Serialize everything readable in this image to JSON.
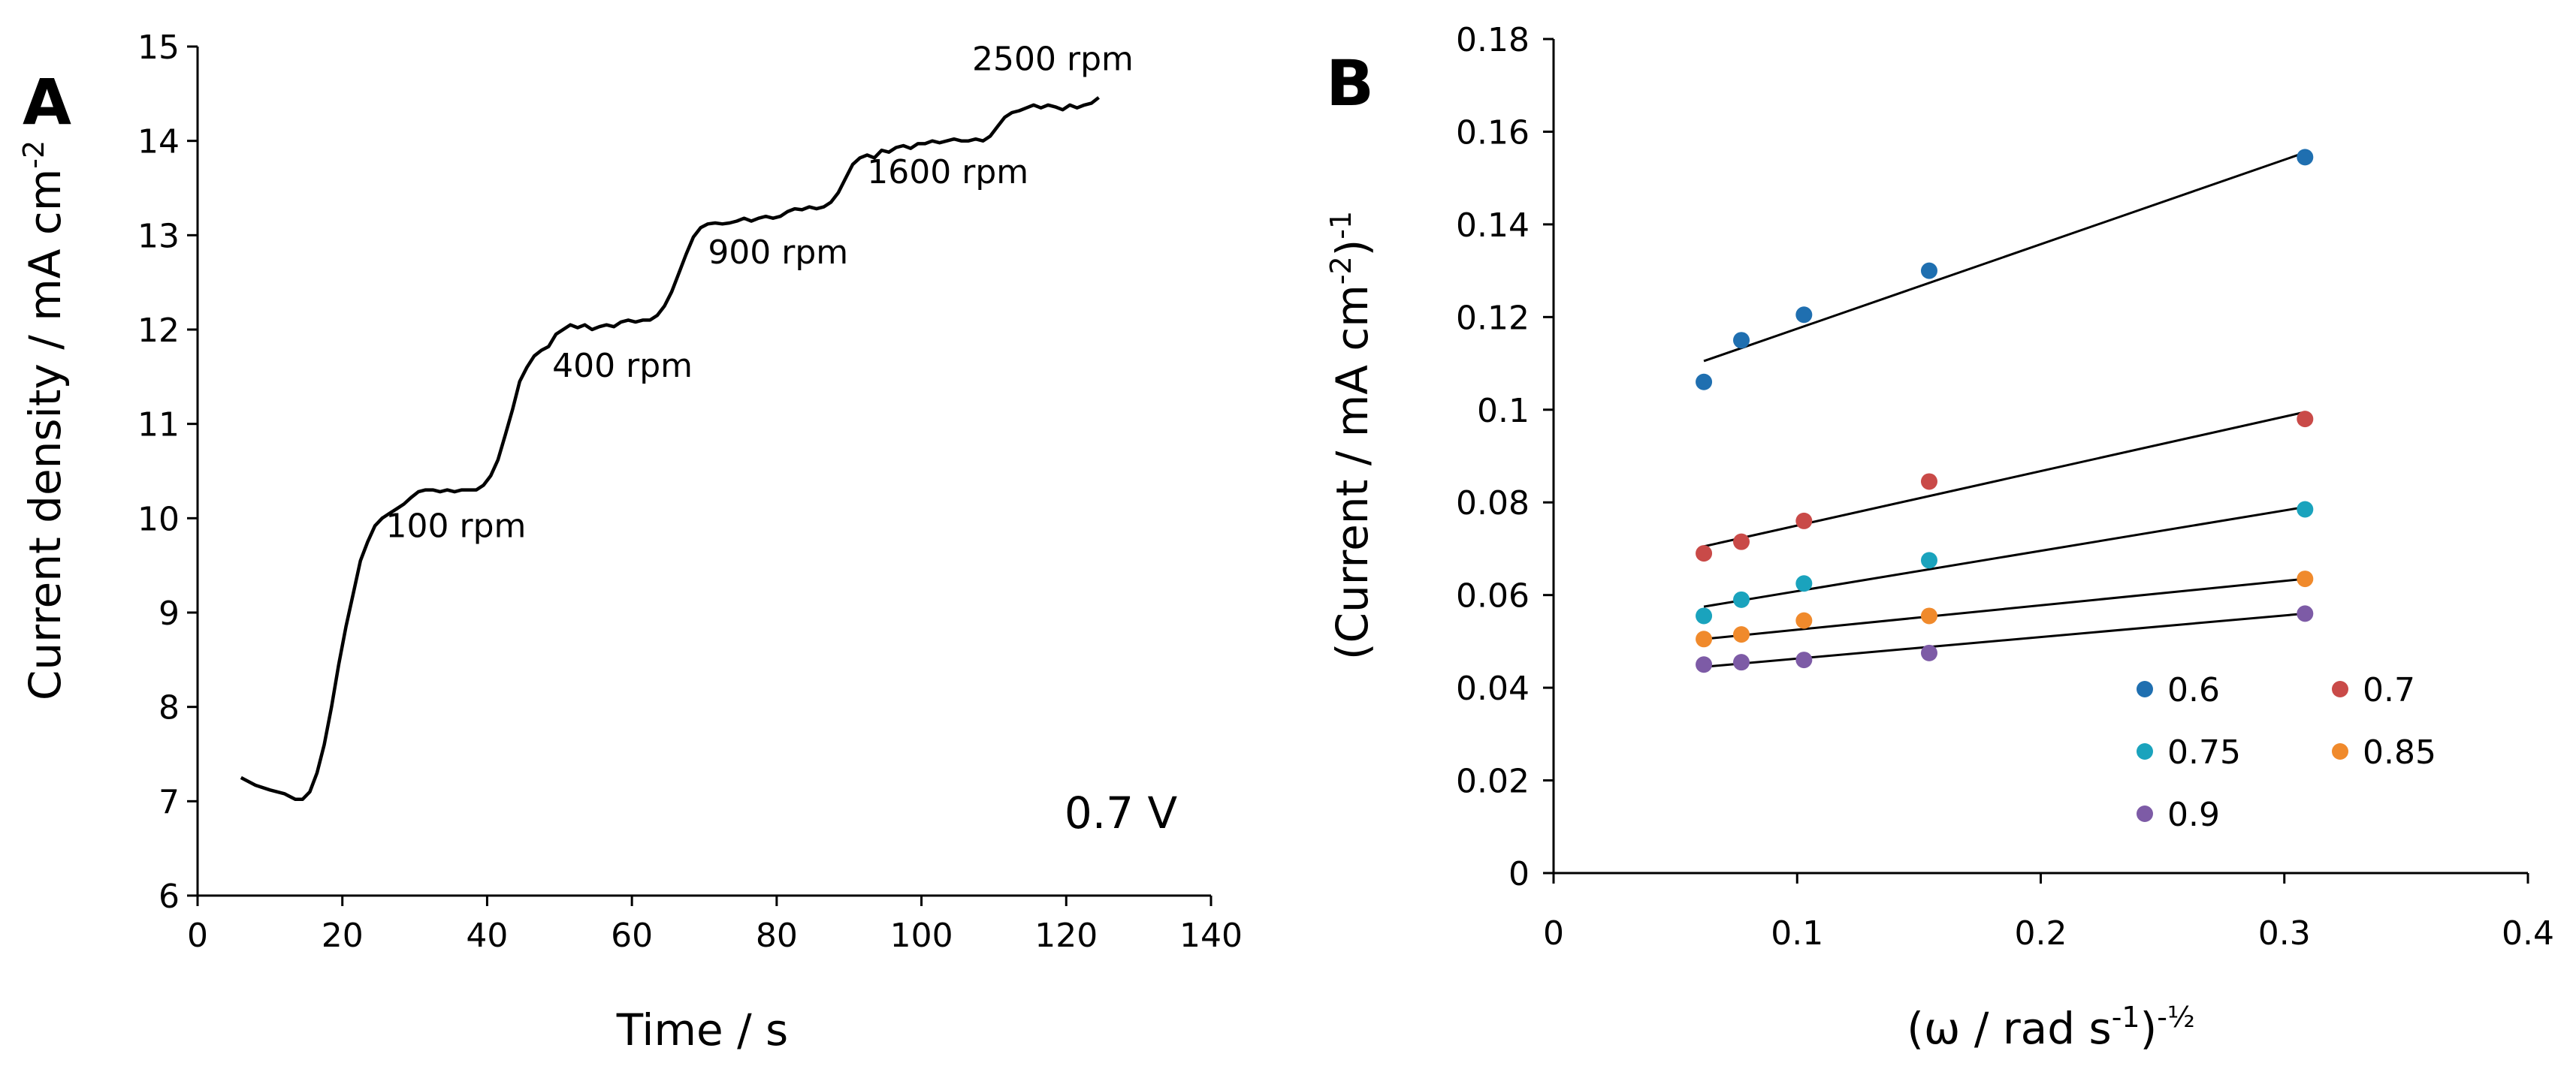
{
  "chart_data": [
    {
      "panel": "A",
      "type": "line",
      "title": "",
      "xlabel": "Time / s",
      "ylabel": "Current density / mA cm",
      "ylabel_superscript": "-2",
      "xlim": [
        0,
        140
      ],
      "ylim": [
        6,
        15
      ],
      "x_ticks": [
        0,
        20,
        40,
        60,
        80,
        100,
        120,
        140
      ],
      "y_ticks": [
        6,
        7,
        8,
        9,
        10,
        11,
        12,
        13,
        14,
        15
      ],
      "grid": false,
      "series": [
        {
          "name": "current",
          "x": [
            6,
            8,
            10,
            12,
            13.5,
            14.5,
            15.5,
            16.5,
            17.5,
            18.5,
            19.5,
            20.5,
            21.5,
            22.5,
            23.5,
            24.5,
            25.5,
            26.5,
            27.5,
            28.5,
            29.5,
            30.5,
            31.5,
            32.5,
            33.5,
            34.5,
            35.5,
            36.5,
            37.5,
            38.5,
            39.5,
            40.5,
            41.5,
            42.5,
            43.5,
            44.5,
            45.5,
            46.5,
            47.5,
            48.5,
            49.5,
            50.5,
            51.5,
            52.5,
            53.5,
            54.5,
            55.5,
            56.5,
            57.5,
            58.5,
            59.5,
            60.5,
            61.5,
            62.5,
            63.5,
            64.5,
            65.5,
            66.5,
            67.5,
            68.5,
            69.5,
            70.5,
            71.5,
            72.5,
            73.5,
            74.5,
            75.5,
            76.5,
            77.5,
            78.5,
            79.5,
            80.5,
            81.5,
            82.5,
            83.5,
            84.5,
            85.5,
            86.5,
            87.5,
            88.5,
            89.5,
            90.5,
            91.5,
            92.5,
            93.5,
            94.5,
            95.5,
            96.5,
            97.5,
            98.5,
            99.5,
            100.5,
            101.5,
            102.5,
            103.5,
            104.5,
            105.5,
            106.5,
            107.5,
            108.5,
            109.5,
            110.5,
            111.5,
            112.5,
            113.5,
            114.5,
            115.5,
            116.5,
            117.5,
            118.5,
            119.5,
            120.5,
            121.5,
            122.5,
            123.5,
            124.5
          ],
          "y": [
            7.25,
            7.17,
            7.12,
            7.08,
            7.02,
            7.02,
            7.1,
            7.3,
            7.6,
            8.0,
            8.45,
            8.85,
            9.2,
            9.55,
            9.75,
            9.92,
            10.0,
            10.05,
            10.1,
            10.15,
            10.22,
            10.28,
            10.3,
            10.3,
            10.28,
            10.3,
            10.28,
            10.3,
            10.3,
            10.3,
            10.35,
            10.45,
            10.62,
            10.88,
            11.15,
            11.45,
            11.6,
            11.72,
            11.78,
            11.82,
            11.95,
            12.0,
            12.05,
            12.02,
            12.05,
            12.0,
            12.03,
            12.05,
            12.03,
            12.08,
            12.1,
            12.08,
            12.1,
            12.1,
            12.15,
            12.25,
            12.4,
            12.6,
            12.8,
            12.98,
            13.08,
            13.12,
            13.13,
            13.12,
            13.13,
            13.15,
            13.18,
            13.15,
            13.18,
            13.2,
            13.18,
            13.2,
            13.25,
            13.28,
            13.27,
            13.3,
            13.28,
            13.3,
            13.35,
            13.45,
            13.6,
            13.75,
            13.82,
            13.85,
            13.82,
            13.9,
            13.88,
            13.93,
            13.95,
            13.92,
            13.97,
            13.97,
            14.0,
            13.98,
            14.0,
            14.02,
            14.0,
            14.0,
            14.02,
            14.0,
            14.05,
            14.15,
            14.25,
            14.3,
            14.32,
            14.35,
            14.38,
            14.35,
            14.38,
            14.36,
            14.33,
            14.38,
            14.35,
            14.38,
            14.4,
            14.46
          ]
        }
      ],
      "annotations": [
        {
          "text": "100 rpm",
          "x": 26,
          "y": 9.8
        },
        {
          "text": "400 rpm",
          "x": 49,
          "y": 11.5
        },
        {
          "text": "900 rpm",
          "x": 70.5,
          "y": 12.7
        },
        {
          "text": "1600 rpm",
          "x": 92.5,
          "y": 13.55
        },
        {
          "text": "2500 rpm",
          "x": 107,
          "y": 14.75
        }
      ],
      "label": "0.7 V",
      "panel_label": "A"
    },
    {
      "panel": "B",
      "type": "scatter",
      "title": "",
      "xlabel_parts": [
        "(ω / rad s",
        "-1",
        ")",
        "-½"
      ],
      "ylabel_parts": [
        "(Current / mA cm",
        "-2",
        ")",
        "-1"
      ],
      "xlim": [
        0,
        0.4
      ],
      "ylim": [
        0,
        0.18
      ],
      "x_ticks": [
        0,
        0.1,
        0.2,
        0.3,
        0.4
      ],
      "x_tick_labels": [
        "0",
        "0.1",
        "0.2",
        "0.3",
        "0.4"
      ],
      "y_ticks": [
        0,
        0.02,
        0.04,
        0.06,
        0.08,
        0.1,
        0.12,
        0.14,
        0.16,
        0.18
      ],
      "y_tick_labels": [
        "0",
        "0.02",
        "0.04",
        "0.06",
        "0.08",
        "0.1",
        "0.12",
        "0.14",
        "0.16",
        "0.18"
      ],
      "grid": false,
      "x": [
        0.0617,
        0.0771,
        0.1028,
        0.1542,
        0.3085
      ],
      "series": [
        {
          "name": "0.6",
          "color": "#1f6fb0",
          "values": [
            0.106,
            0.115,
            0.1205,
            0.13,
            0.1545
          ],
          "fit": [
            0.1105,
            0.1555
          ]
        },
        {
          "name": "0.7",
          "color": "#c94a48",
          "values": [
            0.069,
            0.0715,
            0.076,
            0.0845,
            0.098
          ],
          "fit": [
            0.0705,
            0.0995
          ]
        },
        {
          "name": "0.75",
          "color": "#1aa3bd",
          "values": [
            0.0555,
            0.059,
            0.0625,
            0.0675,
            0.0785
          ],
          "fit": [
            0.0575,
            0.079
          ]
        },
        {
          "name": "0.85",
          "color": "#f08a2c",
          "values": [
            0.0505,
            0.0515,
            0.0545,
            0.0555,
            0.0635
          ],
          "fit": [
            0.0505,
            0.0635
          ]
        },
        {
          "name": "0.9",
          "color": "#7d5ba6",
          "values": [
            0.045,
            0.0455,
            0.046,
            0.0475,
            0.056
          ],
          "fit": [
            0.0445,
            0.056
          ]
        }
      ],
      "legend_position": "lower-right",
      "panel_label": "B"
    }
  ]
}
